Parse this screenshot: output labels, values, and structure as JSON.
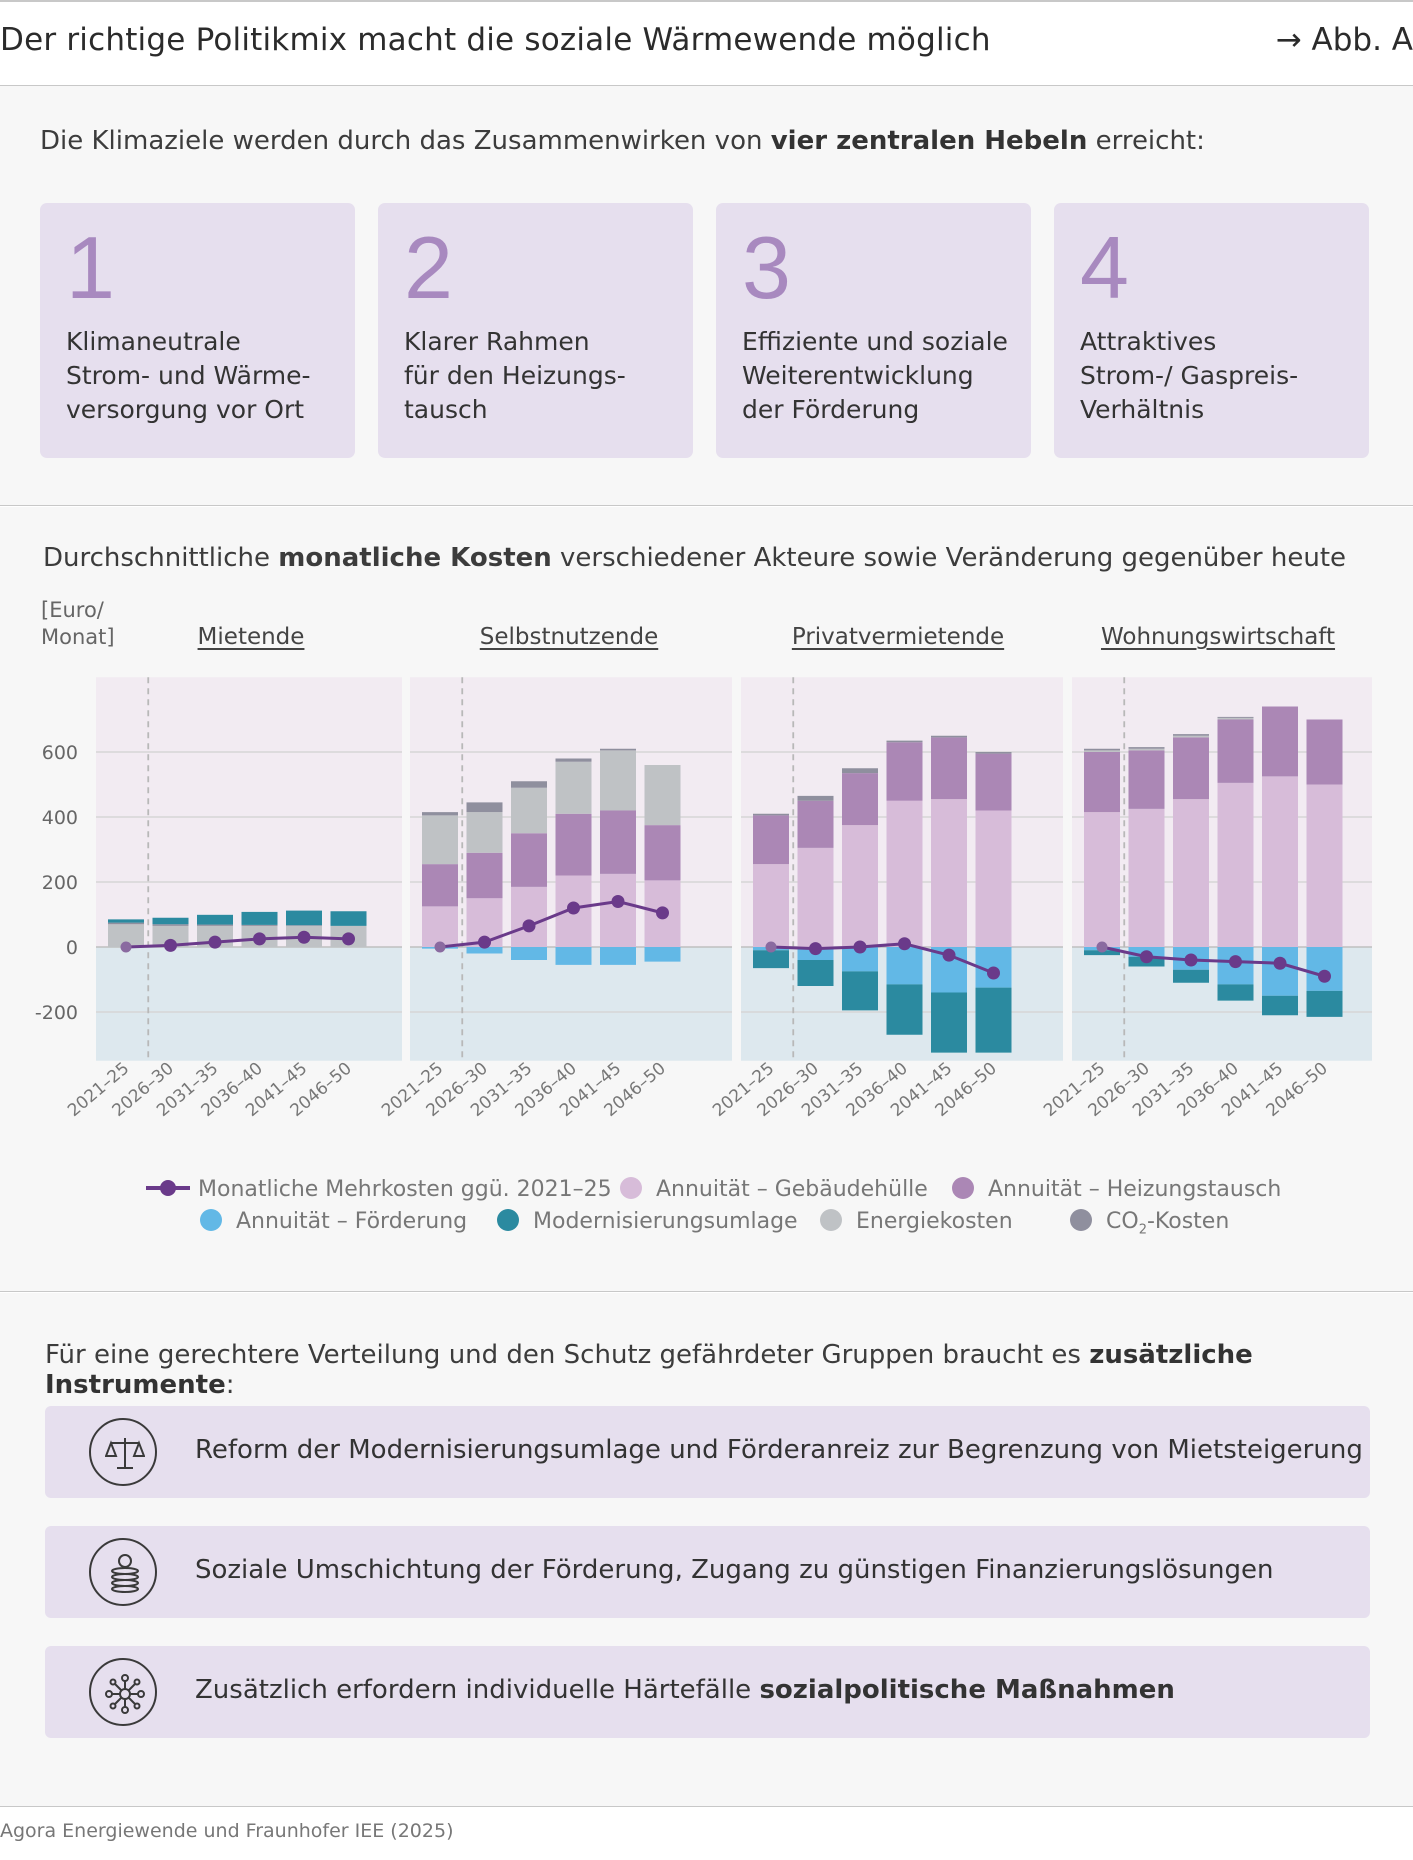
{
  "header": {
    "title": "Der richtige Politikmix macht die soziale Wärmewende möglich",
    "figure_ref": "→ Abb. A"
  },
  "levers": {
    "intro_pre": "Die Klimaziele werden durch das Zusammenwirken von ",
    "intro_bold": "vier zentralen Hebeln",
    "intro_post": " erreicht:",
    "items": [
      {
        "number": "1",
        "text": "Klimaneutrale\nStrom- und Wärme-\nversorgung vor Ort"
      },
      {
        "number": "2",
        "text": "Klarer Rahmen\nfür den Heizungs-\ntausch"
      },
      {
        "number": "3",
        "text": "Effiziente und soziale\nWeiterentwicklung\nder Förderung"
      },
      {
        "number": "4",
        "text": "Attraktives\nStrom-/ Gaspreis-\nVerhältnis"
      }
    ]
  },
  "chart_section": {
    "title_pre": "Durchschnittliche ",
    "title_bold": "monatliche Kosten",
    "title_post": " verschiedener Akteure sowie Veränderung gegenüber heute",
    "unit": "[Euro/\nMonat]"
  },
  "chart_data": {
    "type": "bar",
    "stacked": true,
    "ylabel": "[Euro/Monat]",
    "ylim": [
      -350,
      830
    ],
    "yticks": [
      600,
      400,
      200,
      0,
      -200
    ],
    "ytick_labels": [
      "600",
      "400",
      "200",
      "0",
      "-200"
    ],
    "categories": [
      "2021–25",
      "2026–30",
      "2031–35",
      "2036–40",
      "2041–45",
      "2046–50"
    ],
    "colors": {
      "gebaeudehuelle": "#d7bcd9",
      "heizungstausch": "#ab87b5",
      "foerderung": "#62b8e6",
      "modernisierungsumlage": "#2b8aa0",
      "energiekosten": "#bfc2c5",
      "co2": "#8f8f9e",
      "line": "#6a3a8a"
    },
    "legend": {
      "line": "Monatliche Mehrkosten ggü. 2021–25",
      "gebaeudehuelle": "Annuität – Gebäudehülle",
      "heizungstausch": "Annuität – Heizungstausch",
      "foerderung": "Annuität – Förderung",
      "modernisierungsumlage": "Modernisierungsumlage",
      "energiekosten": "Energiekosten",
      "co2_main": "CO",
      "co2_sub": "2",
      "co2_rest": "-Kosten"
    },
    "panels": [
      {
        "name": "Mietende",
        "positive": {
          "gebaeudehuelle": [
            0,
            0,
            0,
            0,
            0,
            0
          ],
          "heizungstausch": [
            0,
            0,
            0,
            0,
            0,
            0
          ],
          "energiekosten": [
            70,
            65,
            65,
            65,
            65,
            65
          ],
          "co2": [
            5,
            5,
            4,
            3,
            2,
            0
          ],
          "modernisierungsumlage": [
            10,
            20,
            30,
            40,
            45,
            45
          ]
        },
        "negative": {
          "foerderung": [
            0,
            0,
            0,
            0,
            0,
            0
          ],
          "modernisierungsumlage": [
            0,
            0,
            0,
            0,
            0,
            0
          ]
        },
        "line": [
          0,
          5,
          15,
          25,
          30,
          25
        ]
      },
      {
        "name": "Selbstnutzende",
        "positive": {
          "gebaeudehuelle": [
            125,
            150,
            185,
            220,
            225,
            205
          ],
          "heizungstausch": [
            130,
            140,
            165,
            190,
            195,
            170
          ],
          "energiekosten": [
            150,
            125,
            140,
            160,
            185,
            185
          ],
          "co2": [
            10,
            30,
            20,
            10,
            5,
            0
          ],
          "modernisierungsumlage": [
            0,
            0,
            0,
            0,
            0,
            0
          ]
        },
        "negative": {
          "foerderung": [
            -5,
            -20,
            -40,
            -55,
            -55,
            -45
          ],
          "modernisierungsumlage": [
            0,
            0,
            0,
            0,
            0,
            0
          ]
        },
        "line": [
          0,
          15,
          65,
          120,
          140,
          105
        ]
      },
      {
        "name": "Privatvermietende",
        "positive": {
          "gebaeudehuelle": [
            255,
            305,
            375,
            450,
            455,
            420
          ],
          "heizungstausch": [
            150,
            145,
            160,
            180,
            190,
            175
          ],
          "energiekosten": [
            0,
            0,
            0,
            0,
            0,
            0
          ],
          "co2": [
            5,
            15,
            15,
            5,
            5,
            5
          ],
          "modernisierungsumlage": [
            0,
            0,
            0,
            0,
            0,
            0
          ]
        },
        "negative": {
          "foerderung": [
            -10,
            -40,
            -75,
            -115,
            -140,
            -125
          ],
          "modernisierungsumlage": [
            -55,
            -80,
            -120,
            -155,
            -185,
            -200
          ]
        },
        "line": [
          0,
          -5,
          0,
          10,
          -25,
          -80
        ]
      },
      {
        "name": "Wohnungswirtschaft",
        "positive": {
          "gebaeudehuelle": [
            415,
            425,
            455,
            505,
            525,
            500
          ],
          "heizungstausch": [
            185,
            180,
            190,
            195,
            215,
            200
          ],
          "energiekosten": [
            5,
            5,
            5,
            5,
            0,
            0
          ],
          "co2": [
            5,
            5,
            5,
            3,
            0,
            0
          ],
          "modernisierungsumlage": [
            0,
            0,
            0,
            0,
            0,
            0
          ]
        },
        "negative": {
          "foerderung": [
            -10,
            -30,
            -70,
            -115,
            -150,
            -135
          ],
          "modernisierungsumlage": [
            -15,
            -30,
            -40,
            -50,
            -60,
            -80
          ]
        },
        "line": [
          0,
          -30,
          -40,
          -45,
          -50,
          -90
        ]
      }
    ]
  },
  "instruments": {
    "intro_pre": "Für eine gerechtere Verteilung und den Schutz gefährdeter Gruppen braucht es ",
    "intro_bold": "zusätzliche Instrumente",
    "intro_post": ":",
    "items": [
      {
        "icon": "scales-icon",
        "text_pre": "Reform der Modernisierungsumlage und Förderanreiz zur Begrenzung von Mietsteigerung",
        "text_bold": ""
      },
      {
        "icon": "coins-icon",
        "text_pre": "Soziale Umschichtung der Förderung, Zugang zu günstigen Finanzierungslösungen",
        "text_bold": ""
      },
      {
        "icon": "network-icon",
        "text_pre": "Zusätzlich erfordern individuelle Härtefälle ",
        "text_bold": "sozialpolitische Maßnahmen"
      }
    ]
  },
  "source": "Agora Energiewende und Fraunhofer IEE (2025)"
}
